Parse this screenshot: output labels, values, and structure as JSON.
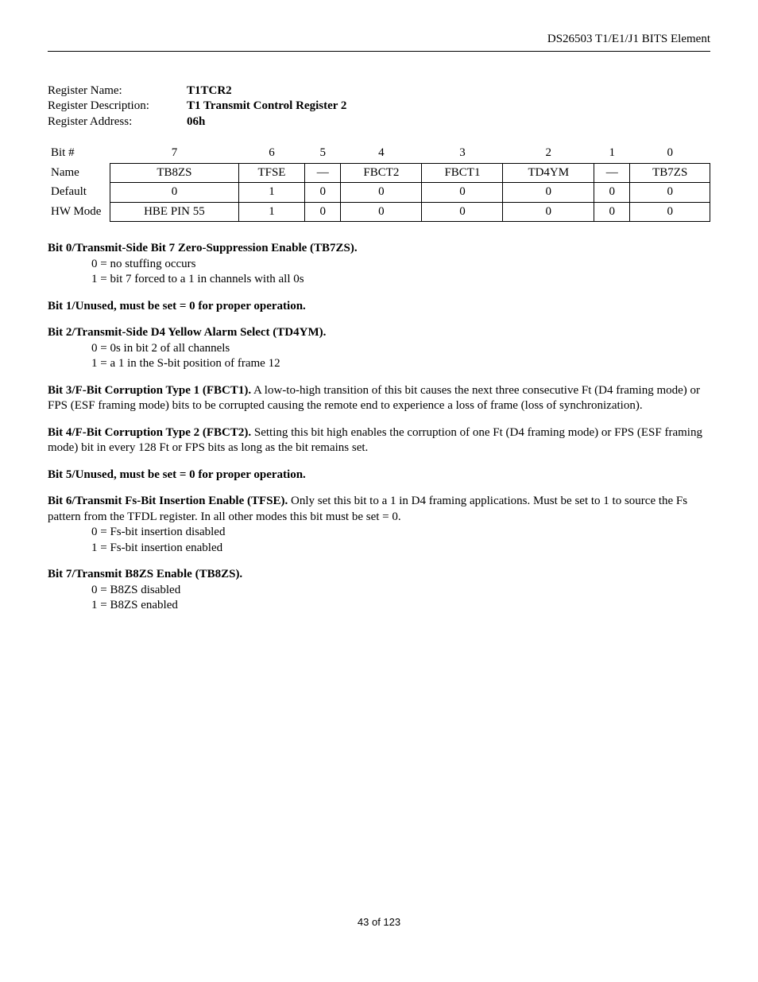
{
  "header": {
    "doc_title": "DS26503 T1/E1/J1 BITS Element"
  },
  "register": {
    "name_label": "Register Name:",
    "name_value": "T1TCR2",
    "desc_label": "Register Description:",
    "desc_value": "T1 Transmit Control Register 2",
    "addr_label": "Register Address:",
    "addr_value": "06h"
  },
  "table": {
    "row_labels": {
      "bitnum": "Bit #",
      "name": "Name",
      "default": "Default",
      "hw": "HW Mode"
    },
    "bits": [
      "7",
      "6",
      "5",
      "4",
      "3",
      "2",
      "1",
      "0"
    ],
    "names": [
      "TB8ZS",
      "TFSE",
      "—",
      "FBCT2",
      "FBCT1",
      "TD4YM",
      "—",
      "TB7ZS"
    ],
    "defaults": [
      "0",
      "1",
      "0",
      "0",
      "0",
      "0",
      "0",
      "0"
    ],
    "hw": [
      "HBE PIN 55",
      "1",
      "0",
      "0",
      "0",
      "0",
      "0",
      "0"
    ]
  },
  "desc": {
    "bit0": {
      "h": "Bit 0/Transmit-Side Bit 7 Zero-Suppression Enable (TB7ZS).",
      "l0": "0 = no stuffing occurs",
      "l1": "1 = bit 7 forced to a 1 in channels with all 0s"
    },
    "bit1": {
      "h": "Bit 1/Unused, must be set = 0 for proper operation."
    },
    "bit2": {
      "h": "Bit 2/Transmit-Side D4 Yellow Alarm Select (TD4YM).",
      "l0": "0 = 0s in bit 2 of all channels",
      "l1": "1 = a 1 in the S-bit position of frame 12"
    },
    "bit3": {
      "h": "Bit 3/F-Bit Corruption Type 1 (FBCT1).",
      "b": " A low-to-high transition of this bit causes the next three consecutive Ft (D4 framing mode) or FPS (ESF framing mode) bits to be corrupted causing the remote end to experience a loss of frame (loss of synchronization)."
    },
    "bit4": {
      "h": "Bit 4/F-Bit Corruption Type 2 (FBCT2).",
      "b": " Setting this bit high enables the corruption of one Ft (D4 framing mode) or FPS (ESF framing mode) bit in every 128 Ft or FPS bits as long as the bit remains set."
    },
    "bit5": {
      "h": "Bit 5/Unused, must be set = 0 for proper operation."
    },
    "bit6": {
      "h": "Bit 6/Transmit Fs-Bit Insertion Enable (TFSE).",
      "b": " Only set this bit to a 1 in D4 framing applications. Must be set to 1 to source the Fs pattern from the TFDL register.  In all other modes this bit must be set = 0.",
      "l0": "0 = Fs-bit insertion disabled",
      "l1": "1 = Fs-bit insertion enabled"
    },
    "bit7": {
      "h": "Bit 7/Transmit B8ZS Enable (TB8ZS).",
      "l0": "0 = B8ZS disabled",
      "l1": "1 = B8ZS enabled"
    }
  },
  "footer": {
    "page": "43 of 123"
  }
}
